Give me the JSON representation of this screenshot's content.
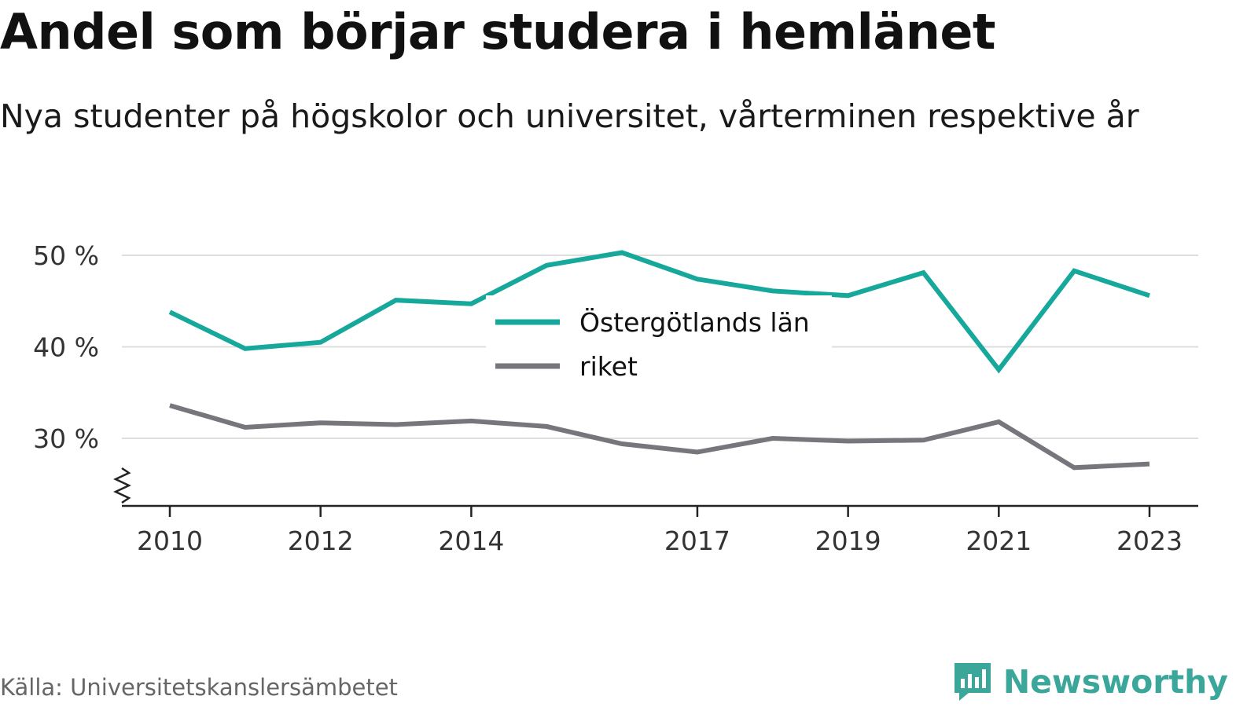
{
  "title": "Andel som börjar studera i hemlänet",
  "subtitle": "Nya studenter på högskolor och universitet, vårterminen respektive år",
  "source": "Källa: Universitetskanslersämbetet",
  "brand": {
    "name": "Newsworthy",
    "icon": "newsworthy-logo-icon",
    "color": "#3aa79a"
  },
  "chart_data": {
    "type": "line",
    "x": [
      2010,
      2011,
      2012,
      2013,
      2014,
      2015,
      2016,
      2017,
      2018,
      2019,
      2020,
      2021,
      2022,
      2023
    ],
    "x_tick_labels": [
      "2010",
      "2012",
      "2014",
      "2017",
      "2019",
      "2021",
      "2023"
    ],
    "y_tick_labels": [
      "50 %",
      "40 %",
      "30 %"
    ],
    "y_ticks": [
      50,
      40,
      30
    ],
    "ylim": [
      23,
      52
    ],
    "axis_break": true,
    "grid": true,
    "legend_position": "top-center",
    "series": [
      {
        "name": "Östergötlands län",
        "color": "#17a89c",
        "values": [
          43.8,
          39.8,
          40.5,
          45.1,
          44.7,
          48.9,
          50.3,
          47.4,
          46.1,
          45.6,
          48.1,
          37.5,
          48.3,
          45.6
        ]
      },
      {
        "name": "riket",
        "color": "#77767d",
        "values": [
          33.6,
          31.2,
          31.7,
          31.5,
          31.9,
          31.3,
          29.4,
          28.5,
          30.0,
          29.7,
          29.8,
          31.8,
          26.8,
          27.2
        ]
      }
    ]
  }
}
